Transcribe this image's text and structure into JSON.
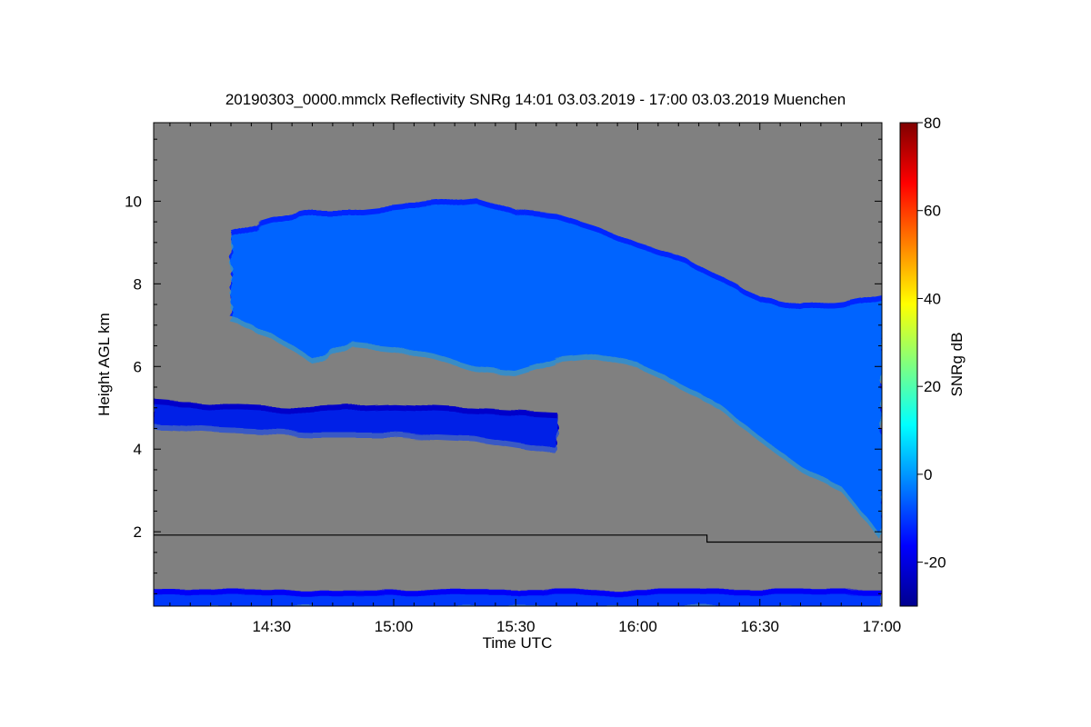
{
  "chart_data": {
    "type": "heatmap",
    "title": "20190303_0000.mmclx Reflectivity SNRg   14:01 03.03.2019 - 17:00 03.03.2019 Muenchen",
    "xlabel": "Time UTC",
    "ylabel": "Height AGL km",
    "colorbar_label": "SNRg dB",
    "x_range": [
      "14:01",
      "17:00"
    ],
    "x_ticks": [
      "14:30",
      "15:00",
      "15:30",
      "16:00",
      "16:30",
      "17:00"
    ],
    "ylim": [
      0.2,
      11.9
    ],
    "y_ticks": [
      2,
      4,
      6,
      8,
      10
    ],
    "colorbar_range": [
      -30,
      80
    ],
    "colorbar_ticks": [
      -20,
      0,
      20,
      40,
      60,
      80
    ],
    "colormap": "jet",
    "background_color": "#808080",
    "features": [
      {
        "label": "upper cloud layer",
        "time_start": "14:20",
        "time_end": "17:00",
        "top_km": [
          [
            "14:20",
            9.3
          ],
          [
            "14:30",
            9.6
          ],
          [
            "14:40",
            9.8
          ],
          [
            "14:50",
            9.8
          ],
          [
            "15:00",
            9.9
          ],
          [
            "15:10",
            10.0
          ],
          [
            "15:20",
            10.1
          ],
          [
            "15:30",
            9.8
          ],
          [
            "15:40",
            9.7
          ],
          [
            "15:50",
            9.4
          ],
          [
            "16:00",
            9.0
          ],
          [
            "16:10",
            8.7
          ],
          [
            "16:20",
            8.2
          ],
          [
            "16:30",
            7.7
          ],
          [
            "16:40",
            7.5
          ],
          [
            "16:50",
            7.6
          ],
          [
            "17:00",
            7.8
          ]
        ],
        "base_km": [
          [
            "14:20",
            7.2
          ],
          [
            "14:30",
            6.8
          ],
          [
            "14:40",
            6.2
          ],
          [
            "14:50",
            6.6
          ],
          [
            "15:00",
            6.5
          ],
          [
            "15:10",
            6.3
          ],
          [
            "15:20",
            6.0
          ],
          [
            "15:30",
            5.9
          ],
          [
            "15:40",
            6.2
          ],
          [
            "15:50",
            6.3
          ],
          [
            "16:00",
            6.1
          ],
          [
            "16:10",
            5.6
          ],
          [
            "16:20",
            5.1
          ],
          [
            "16:30",
            4.3
          ],
          [
            "16:40",
            3.6
          ],
          [
            "16:50",
            3.1
          ],
          [
            "17:00",
            1.9
          ]
        ],
        "typical_snr_db": 0
      },
      {
        "label": "mid-level layer",
        "time_start": "14:01",
        "time_end": "15:40",
        "top_km": [
          [
            "14:01",
            5.2
          ],
          [
            "14:15",
            5.1
          ],
          [
            "14:40",
            5.0
          ],
          [
            "15:00",
            5.1
          ],
          [
            "15:20",
            5.0
          ],
          [
            "15:40",
            4.9
          ]
        ],
        "base_km": [
          [
            "14:01",
            4.6
          ],
          [
            "14:15",
            4.5
          ],
          [
            "14:40",
            4.4
          ],
          [
            "15:00",
            4.4
          ],
          [
            "15:20",
            4.3
          ],
          [
            "15:40",
            4.0
          ]
        ],
        "typical_snr_db": -10
      },
      {
        "label": "near-surface clutter",
        "time_start": "14:01",
        "time_end": "17:00",
        "top_km": [
          [
            "14:01",
            0.6
          ],
          [
            "17:00",
            0.6
          ]
        ],
        "base_km": [
          [
            "14:01",
            0.2
          ],
          [
            "17:00",
            0.2
          ]
        ],
        "typical_snr_db": -5
      }
    ],
    "overlay_line": {
      "color": "#000000",
      "points": [
        [
          "14:01",
          1.92
        ],
        [
          "16:17",
          1.92
        ],
        [
          "16:17",
          1.75
        ],
        [
          "17:00",
          1.75
        ]
      ]
    },
    "grid": false,
    "legend": "colorbar-right"
  }
}
